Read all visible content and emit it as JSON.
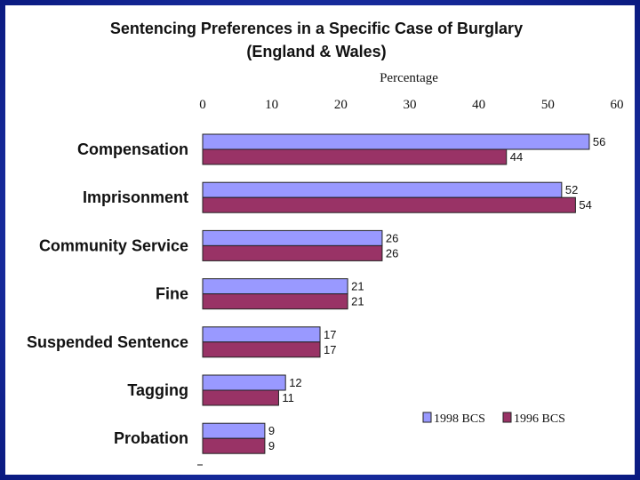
{
  "chart_data": {
    "type": "bar",
    "orientation": "horizontal",
    "title": "Sentencing Preferences in a Specific Case of Burglary",
    "subtitle": "(England & Wales)",
    "xlabel": "Percentage",
    "ylabel": "",
    "xlim": [
      0,
      60
    ],
    "xticks": [
      0,
      10,
      20,
      30,
      40,
      50,
      60
    ],
    "categories": [
      "Compensation",
      "Imprisonment",
      "Community Service",
      "Fine",
      "Suspended Sentence",
      "Tagging",
      "Probation"
    ],
    "series": [
      {
        "name": "1998 BCS",
        "color": "#9999ff",
        "values": [
          56,
          52,
          26,
          21,
          17,
          12,
          9
        ]
      },
      {
        "name": "1996 BCS",
        "color": "#993366",
        "values": [
          44,
          54,
          26,
          21,
          17,
          11,
          9
        ]
      }
    ],
    "legend_position": "bottom-right",
    "grid": false
  }
}
